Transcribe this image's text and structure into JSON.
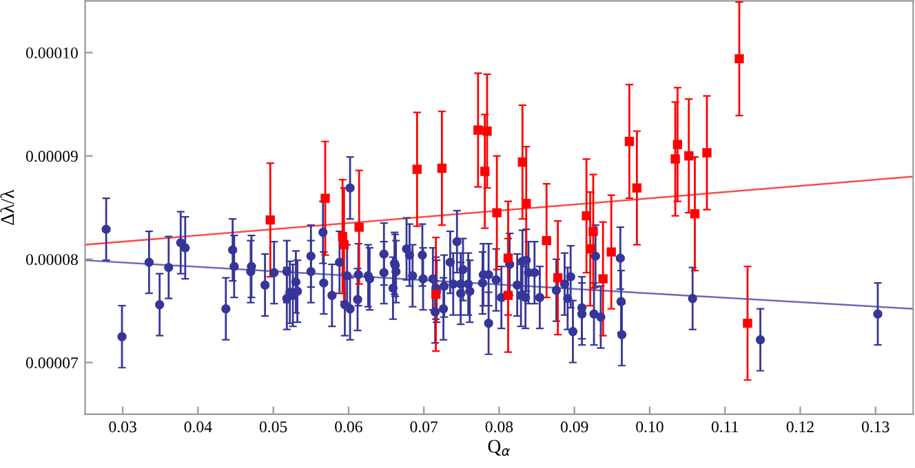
{
  "chart_data": {
    "type": "scatter",
    "xlabel": "Q$_{α}$",
    "ylabel": "Δλ/λ",
    "xlim": [
      0.025,
      0.135
    ],
    "ylim": [
      6.5e-05,
      0.000105
    ],
    "xticks": [
      0.03,
      0.04,
      0.05,
      0.06,
      0.07,
      0.08,
      0.09,
      {
        "value": 0.1,
        "label": "0.10"
      },
      0.11,
      0.12,
      0.13
    ],
    "yticks": [
      {
        "value": 7e-05,
        "label": "0.00007"
      },
      {
        "value": 8e-05,
        "label": "0.00008"
      },
      {
        "value": 9e-05,
        "label": "0.00009"
      },
      {
        "value": 0.0001,
        "label": "0.00010"
      }
    ],
    "grid": false,
    "legend": false,
    "series": [
      {
        "marker": "circle",
        "color": "#35359a",
        "x": [
          0.0278,
          0.0299,
          0.0335,
          0.0349,
          0.0361,
          0.0377,
          0.0383,
          0.0437,
          0.0446,
          0.0448,
          0.047,
          0.0471,
          0.0489,
          0.0501,
          0.0518,
          0.0518,
          0.0522,
          0.0526,
          0.053,
          0.0532,
          0.055,
          0.055,
          0.0566,
          0.0567,
          0.0578,
          0.0588,
          0.0595,
          0.0598,
          0.0602,
          0.0602,
          0.0612,
          0.0613,
          0.0626,
          0.0628,
          0.0647,
          0.0647,
          0.0659,
          0.0661,
          0.0662,
          0.0663,
          0.0677,
          0.0681,
          0.0685,
          0.0698,
          0.0699,
          0.0712,
          0.0716,
          0.0717,
          0.0715,
          0.0727,
          0.0726,
          0.0735,
          0.0739,
          0.0744,
          0.0749,
          0.0752,
          0.0749,
          0.0759,
          0.0761,
          0.0778,
          0.0779,
          0.0786,
          0.0786,
          0.0796,
          0.0803,
          0.0814,
          0.0824,
          0.0829,
          0.0831,
          0.0835,
          0.0836,
          0.0839,
          0.0847,
          0.0854,
          0.0876,
          0.0887,
          0.0895,
          0.0891,
          0.0898,
          0.091,
          0.091,
          0.0926,
          0.0928,
          0.0935,
          0.0961,
          0.0962,
          0.0963,
          0.1057,
          0.1147,
          0.1303
        ],
        "values": [
          8.29e-05,
          7.25e-05,
          7.97e-05,
          7.56e-05,
          7.92e-05,
          8.16e-05,
          8.11e-05,
          7.52e-05,
          8.09e-05,
          7.93e-05,
          7.88e-05,
          7.93e-05,
          7.75e-05,
          7.87e-05,
          7.88e-05,
          7.62e-05,
          7.68e-05,
          7.65e-05,
          7.78e-05,
          7.69e-05,
          8.03e-05,
          7.88e-05,
          8.26e-05,
          7.77e-05,
          7.65e-05,
          7.97e-05,
          7.56e-05,
          7.84e-05,
          7.52e-05,
          8.69e-05,
          7.61e-05,
          7.85e-05,
          7.84e-05,
          7.81e-05,
          8.05e-05,
          7.87e-05,
          7.72e-05,
          7.96e-05,
          7.94e-05,
          7.88e-05,
          8.1e-05,
          8.04e-05,
          7.84e-05,
          8.04e-05,
          7.81e-05,
          7.81e-05,
          7.72e-05,
          7.69e-05,
          7.49e-05,
          7.74e-05,
          7.52e-05,
          7.97e-05,
          7.76e-05,
          8.17e-05,
          7.76e-05,
          7.9e-05,
          7.67e-05,
          7.76e-05,
          7.69e-05,
          7.77e-05,
          7.85e-05,
          7.85e-05,
          7.38e-05,
          7.8e-05,
          7.63e-05,
          7.95e-05,
          7.75e-05,
          7.65e-05,
          7.98e-05,
          7.63e-05,
          7.99e-05,
          7.87e-05,
          7.87e-05,
          7.63e-05,
          7.7e-05,
          7.76e-05,
          7.83e-05,
          7.62e-05,
          7.3e-05,
          7.53e-05,
          7.47e-05,
          7.47e-05,
          8.03e-05,
          7.44e-05,
          8.01e-05,
          7.59e-05,
          7.27e-05,
          7.62e-05,
          7.22e-05,
          7.47e-05
        ],
        "errors": [
          3e-06,
          3e-06,
          3e-06,
          3e-06,
          3e-06,
          3e-06,
          3e-06,
          3e-06,
          3e-06,
          3e-06,
          3e-06,
          3e-06,
          3e-06,
          3e-06,
          3e-06,
          3e-06,
          3e-06,
          3e-06,
          3e-06,
          3e-06,
          3e-06,
          3e-06,
          3e-06,
          3e-06,
          3e-06,
          3e-06,
          3e-06,
          3e-06,
          3e-06,
          3e-06,
          3e-06,
          3e-06,
          3e-06,
          3e-06,
          3e-06,
          3e-06,
          3e-06,
          3e-06,
          3e-06,
          3e-06,
          3e-06,
          3e-06,
          3e-06,
          3e-06,
          3e-06,
          3e-06,
          3e-06,
          3e-06,
          3e-06,
          3e-06,
          3e-06,
          3e-06,
          3e-06,
          3e-06,
          3e-06,
          3e-06,
          3e-06,
          3e-06,
          3e-06,
          3e-06,
          3e-06,
          3e-06,
          3e-06,
          3e-06,
          3e-06,
          3e-06,
          3e-06,
          3e-06,
          3e-06,
          3e-06,
          3e-06,
          3e-06,
          3e-06,
          3e-06,
          3e-06,
          3e-06,
          3e-06,
          3e-06,
          3e-06,
          3e-06,
          3e-06,
          3e-06,
          3e-06,
          3e-06,
          3e-06,
          3e-06,
          3e-06,
          3e-06,
          3e-06,
          3e-06
        ]
      },
      {
        "marker": "square",
        "color": "#ff0000",
        "x": [
          0.0496,
          0.0569,
          0.0592,
          0.0594,
          0.0614,
          0.0691,
          0.0716,
          0.0724,
          0.0772,
          0.0781,
          0.0784,
          0.0797,
          0.0812,
          0.0812,
          0.0831,
          0.0836,
          0.0863,
          0.0878,
          0.0916,
          0.0921,
          0.0925,
          0.0938,
          0.0949,
          0.0973,
          0.0983,
          0.1034,
          0.1037,
          0.1052,
          0.106,
          0.1076,
          0.1119,
          0.113
        ],
        "values": [
          8.38e-05,
          8.59e-05,
          8.22e-05,
          8.14e-05,
          8.31e-05,
          8.87e-05,
          7.66e-05,
          8.88e-05,
          9.25e-05,
          8.85e-05,
          9.24e-05,
          8.45e-05,
          8.01e-05,
          7.65e-05,
          8.94e-05,
          8.54e-05,
          8.18e-05,
          7.82e-05,
          8.42e-05,
          8.1e-05,
          8.27e-05,
          7.81e-05,
          8.07e-05,
          9.14e-05,
          8.69e-05,
          8.97e-05,
          9.11e-05,
          9e-05,
          8.44e-05,
          9.03e-05,
          9.94e-05,
          7.38e-05
        ],
        "errors": [
          5.5e-06,
          5.5e-06,
          5.5e-06,
          5.5e-06,
          5.5e-06,
          5.5e-06,
          5.5e-06,
          5.5e-06,
          5.5e-06,
          5.5e-06,
          5.5e-06,
          5.5e-06,
          5.5e-06,
          5.5e-06,
          5.5e-06,
          5.5e-06,
          5.5e-06,
          5.5e-06,
          5.5e-06,
          5.5e-06,
          5.5e-06,
          5.5e-06,
          5.5e-06,
          5.5e-06,
          5.5e-06,
          5.5e-06,
          5.5e-06,
          5.5e-06,
          5.5e-06,
          5.5e-06,
          5.5e-06,
          5.5e-06
        ]
      },
      {
        "type": "line",
        "marker": "none",
        "line_style": "solid",
        "color": "#6a6ab4",
        "x": [
          0.025,
          0.135
        ],
        "values": [
          7.99e-05,
          7.52e-05
        ]
      },
      {
        "type": "line",
        "marker": "none",
        "line_style": "solid",
        "color": "#ff4a4a",
        "x": [
          0.025,
          0.135
        ],
        "values": [
          8.14e-05,
          8.8e-05
        ]
      }
    ]
  }
}
